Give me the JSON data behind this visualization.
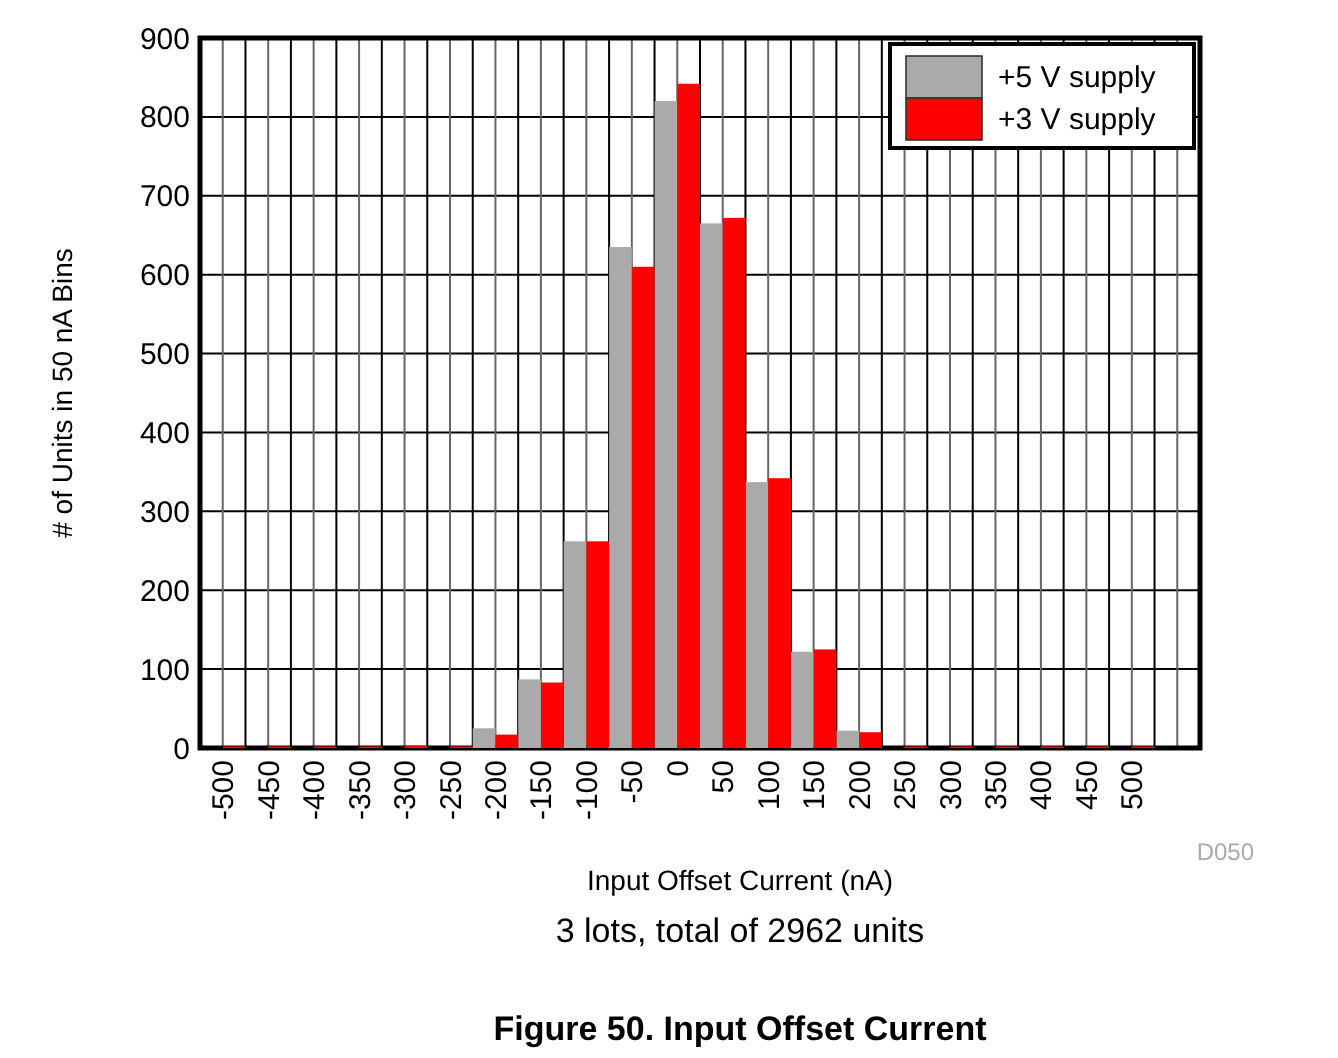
{
  "chart_data": {
    "type": "bar",
    "title": "Figure 50. Input Offset Current",
    "xlabel": "Input Offset Current (nA)",
    "ylabel": "# of Units in 50 nA Bins",
    "annotations": [
      "3 lots, total of 2962 units",
      "D050"
    ],
    "categories": [
      "-500",
      "-450",
      "-400",
      "-350",
      "-300",
      "-250",
      "-200",
      "-150",
      "-100",
      "-50",
      "0",
      "50",
      "100",
      "150",
      "200",
      "250",
      "300",
      "350",
      "400",
      "450",
      "500",
      null
    ],
    "series": [
      {
        "name": "+5 V supply",
        "color": "#aaaaaa",
        "values": [
          0,
          0,
          0,
          0,
          0,
          0,
          25,
          87,
          262,
          635,
          820,
          665,
          337,
          122,
          22,
          0,
          0,
          0,
          0,
          0,
          0,
          null
        ]
      },
      {
        "name": "+3 V supply",
        "color": "#ff0000",
        "values": [
          2,
          2,
          2,
          2,
          3,
          2,
          17,
          83,
          262,
          610,
          842,
          672,
          342,
          125,
          20,
          2,
          2,
          2,
          2,
          2,
          2,
          null
        ]
      }
    ],
    "ylim": [
      0,
      900
    ],
    "yticks": [
      0,
      100,
      200,
      300,
      400,
      500,
      600,
      700,
      800,
      900
    ],
    "grid": true,
    "legend": "top right"
  }
}
